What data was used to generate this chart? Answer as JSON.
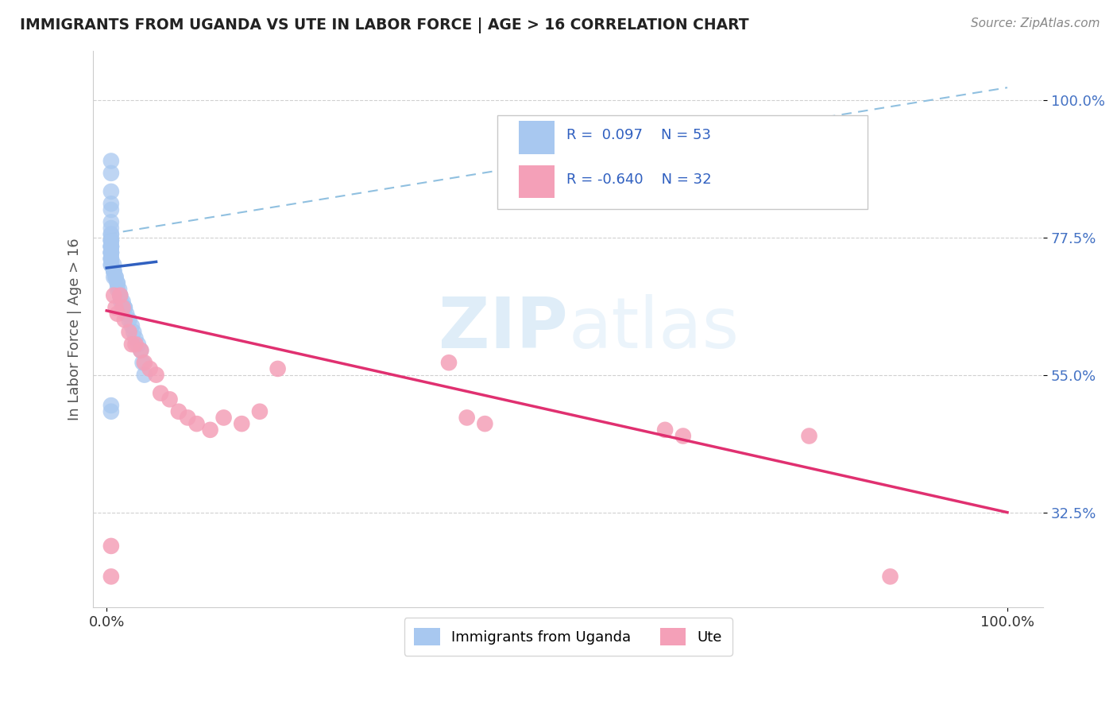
{
  "title": "IMMIGRANTS FROM UGANDA VS UTE IN LABOR FORCE | AGE > 16 CORRELATION CHART",
  "source_text": "Source: ZipAtlas.com",
  "ylabel": "In Labor Force | Age > 16",
  "yticks": [
    0.325,
    0.55,
    0.775,
    1.0
  ],
  "ytick_labels": [
    "32.5%",
    "55.0%",
    "77.5%",
    "100.0%"
  ],
  "xtick_labels": [
    "0.0%",
    "100.0%"
  ],
  "blue_color": "#A8C8F0",
  "pink_color": "#F4A0B8",
  "trendline_blue": "#3060C0",
  "trendline_pink": "#E03070",
  "dashed_line_color": "#90C0E0",
  "uganda_x": [
    0.005,
    0.005,
    0.005,
    0.005,
    0.005,
    0.005,
    0.005,
    0.005,
    0.005,
    0.005,
    0.005,
    0.005,
    0.005,
    0.005,
    0.005,
    0.005,
    0.005,
    0.005,
    0.005,
    0.005,
    0.008,
    0.008,
    0.008,
    0.008,
    0.008,
    0.01,
    0.01,
    0.012,
    0.012,
    0.012,
    0.014,
    0.015,
    0.015,
    0.016,
    0.018,
    0.02,
    0.02,
    0.022,
    0.025,
    0.028,
    0.03,
    0.032,
    0.035,
    0.038,
    0.005,
    0.005,
    0.005,
    0.005,
    0.005,
    0.04,
    0.042,
    0.005,
    0.005
  ],
  "uganda_y": [
    0.8,
    0.79,
    0.78,
    0.78,
    0.77,
    0.77,
    0.77,
    0.76,
    0.76,
    0.76,
    0.76,
    0.75,
    0.75,
    0.75,
    0.75,
    0.74,
    0.74,
    0.74,
    0.73,
    0.73,
    0.73,
    0.72,
    0.72,
    0.72,
    0.71,
    0.71,
    0.71,
    0.7,
    0.7,
    0.69,
    0.69,
    0.68,
    0.68,
    0.67,
    0.67,
    0.66,
    0.66,
    0.65,
    0.64,
    0.63,
    0.62,
    0.61,
    0.6,
    0.59,
    0.9,
    0.88,
    0.85,
    0.83,
    0.82,
    0.57,
    0.55,
    0.5,
    0.49
  ],
  "ute_x": [
    0.005,
    0.005,
    0.008,
    0.01,
    0.012,
    0.015,
    0.018,
    0.02,
    0.025,
    0.028,
    0.032,
    0.038,
    0.042,
    0.048,
    0.055,
    0.06,
    0.07,
    0.08,
    0.09,
    0.1,
    0.115,
    0.13,
    0.15,
    0.17,
    0.19,
    0.38,
    0.4,
    0.42,
    0.62,
    0.64,
    0.78,
    0.87
  ],
  "ute_y": [
    0.27,
    0.22,
    0.68,
    0.66,
    0.65,
    0.68,
    0.66,
    0.64,
    0.62,
    0.6,
    0.6,
    0.59,
    0.57,
    0.56,
    0.55,
    0.52,
    0.51,
    0.49,
    0.48,
    0.47,
    0.46,
    0.48,
    0.47,
    0.49,
    0.56,
    0.57,
    0.48,
    0.47,
    0.46,
    0.45,
    0.45,
    0.22
  ]
}
